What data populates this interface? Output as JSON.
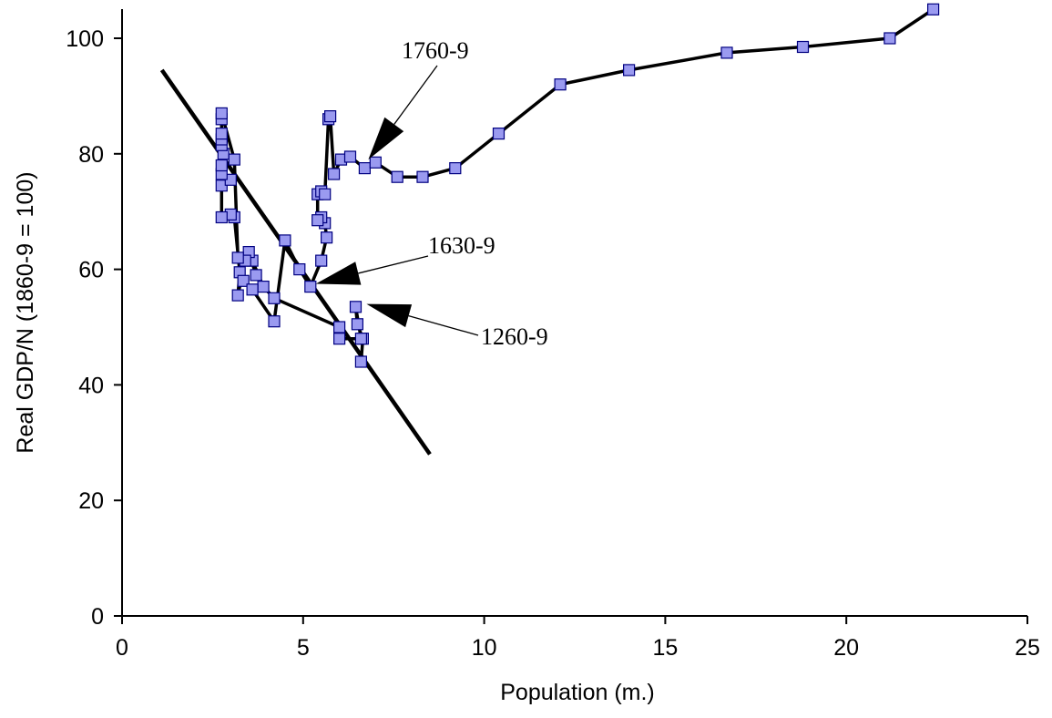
{
  "chart_data": {
    "type": "scatter",
    "title": "",
    "xlabel": "Population (m.)",
    "ylabel": "Real GDP/N  (1860-9 = 100)",
    "xlim": [
      0,
      25
    ],
    "ylim": [
      0,
      100
    ],
    "x_ticks": [
      0,
      5,
      10,
      15,
      20,
      25
    ],
    "y_ticks": [
      0,
      20,
      40,
      60,
      80,
      100
    ],
    "grid": false,
    "legend": "none",
    "marker_color": "#9A9AF0",
    "line_color": "#000000",
    "series": [
      {
        "x": [
          6.6,
          6.65,
          6.5,
          6.45,
          6.6,
          6.0,
          6.0,
          4.2,
          3.9,
          3.6,
          3.7,
          3.5,
          3.4,
          3.2,
          3.25,
          3.1,
          3.0,
          2.75,
          2.75,
          3.0,
          2.75,
          2.75,
          2.8,
          2.75,
          2.75,
          2.75,
          2.75,
          2.75,
          3.1,
          3.2,
          3.35,
          3.6,
          4.2,
          4.5,
          4.9,
          5.2,
          5.5,
          5.65,
          5.6,
          5.5,
          5.4,
          5.4,
          5.5,
          5.6,
          5.7,
          5.75,
          5.85,
          6.05,
          6.3,
          6.7,
          7.0,
          7.6,
          8.3,
          9.2,
          10.4,
          12.1,
          14.0,
          16.7,
          18.8,
          21.2,
          22.4
        ],
        "y": [
          44.0,
          48.0,
          50.5,
          53.5,
          48.0,
          48.0,
          50.0,
          55.0,
          57.0,
          61.5,
          59.0,
          63.0,
          61.5,
          55.5,
          59.5,
          69.0,
          69.5,
          69.0,
          74.5,
          75.5,
          76.5,
          78.0,
          80.0,
          81.5,
          82.5,
          83.5,
          86.0,
          87.0,
          79.0,
          62.0,
          58.0,
          56.5,
          51.0,
          65.0,
          60.0,
          57.0,
          61.5,
          65.5,
          68.0,
          69.0,
          68.5,
          73.0,
          73.5,
          73.0,
          86.0,
          86.5,
          76.5,
          79.0,
          79.5,
          77.5,
          78.5,
          76.0,
          76.0,
          77.5,
          83.5,
          92.0,
          94.5,
          97.5,
          98.5,
          100.0,
          105.0
        ]
      }
    ],
    "trend_line": {
      "x": [
        1.1,
        8.5
      ],
      "y": [
        94.5,
        28.0
      ]
    },
    "annotations": [
      {
        "label": "1760-9",
        "point": [
          6.8,
          79.0
        ]
      },
      {
        "label": "1630-9",
        "point": [
          5.35,
          57.5
        ]
      },
      {
        "label": "1260-9",
        "point": [
          6.75,
          54.0
        ]
      }
    ]
  }
}
